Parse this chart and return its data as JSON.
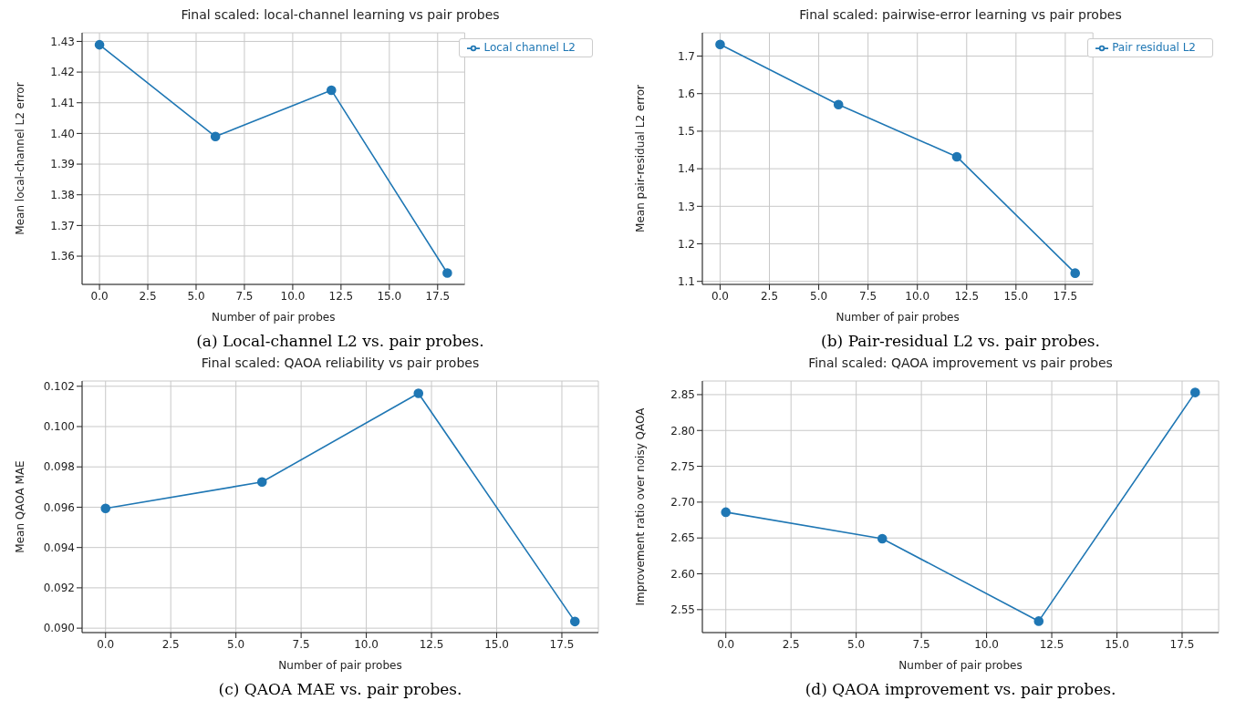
{
  "chart_data": [
    {
      "type": "line",
      "title": "Final scaled: local-channel learning vs pair probes",
      "xlabel": "Number of pair probes",
      "ylabel": "Mean local-channel L2 error",
      "annotations": [
        "(a) Local-channel L2 vs. pair probes."
      ],
      "x": [
        0,
        6,
        12,
        18
      ],
      "series": [
        {
          "name": "Local channel L2",
          "color": "#1f77b4",
          "values": [
            1.4289,
            1.399,
            1.4141,
            1.3545
          ]
        }
      ],
      "xlim": [
        -0.9,
        18.9
      ],
      "xticks": [
        {
          "value": 0,
          "label": "0.0"
        },
        {
          "value": 2.5,
          "label": "2.5"
        },
        {
          "value": 5,
          "label": "5.0"
        },
        {
          "value": 7.5,
          "label": "7.5"
        },
        {
          "value": 10,
          "label": "10.0"
        },
        {
          "value": 12.5,
          "label": "12.5"
        },
        {
          "value": 15,
          "label": "15.0"
        },
        {
          "value": 17.5,
          "label": "17.5"
        }
      ],
      "ylim": [
        1.3508,
        1.4328
      ],
      "yticks": [
        {
          "value": 1.36,
          "label": "1.36"
        },
        {
          "value": 1.37,
          "label": "1.37"
        },
        {
          "value": 1.38,
          "label": "1.38"
        },
        {
          "value": 1.39,
          "label": "1.39"
        },
        {
          "value": 1.4,
          "label": "1.40"
        },
        {
          "value": 1.41,
          "label": "1.41"
        },
        {
          "value": 1.42,
          "label": "1.42"
        },
        {
          "value": 1.43,
          "label": "1.43"
        }
      ],
      "grid": true,
      "legend": "top right",
      "marker": "circle",
      "line_style": "solid"
    },
    {
      "type": "line",
      "title": "Final scaled: pairwise-error learning vs pair probes",
      "xlabel": "Number of pair probes",
      "ylabel": "Mean pair-residual L2 error",
      "annotations": [
        "(b) Pair-residual L2 vs. pair probes."
      ],
      "x": [
        0,
        6,
        12,
        18
      ],
      "series": [
        {
          "name": "Pair residual L2",
          "color": "#1f77b4",
          "values": [
            1.731,
            1.571,
            1.432,
            1.122
          ]
        }
      ],
      "xlim": [
        -0.9,
        18.9
      ],
      "xticks": [
        {
          "value": 0,
          "label": "0.0"
        },
        {
          "value": 2.5,
          "label": "2.5"
        },
        {
          "value": 5,
          "label": "5.0"
        },
        {
          "value": 7.5,
          "label": "7.5"
        },
        {
          "value": 10,
          "label": "10.0"
        },
        {
          "value": 12.5,
          "label": "12.5"
        },
        {
          "value": 15,
          "label": "15.0"
        },
        {
          "value": 17.5,
          "label": "17.5"
        }
      ],
      "ylim": [
        1.092,
        1.762
      ],
      "yticks": [
        1.1,
        1.2,
        1.3,
        1.4,
        1.5,
        1.6,
        1.7
      ],
      "grid": true,
      "legend": "top right",
      "marker": "circle",
      "line_style": "solid"
    },
    {
      "type": "line",
      "title": "Final scaled: QAOA reliability vs pair probes",
      "xlabel": "Number of pair probes",
      "ylabel": "Mean QAOA MAE",
      "annotations": [
        "(c) QAOA MAE vs. pair probes."
      ],
      "x": [
        0,
        6,
        12,
        18
      ],
      "series": [
        {
          "color": "#1f77b4",
          "values": [
            0.09594,
            0.09725,
            0.10165,
            0.09033
          ]
        }
      ],
      "xlim": [
        -0.9,
        18.9
      ],
      "xticks": [
        {
          "value": 0,
          "label": "0.0"
        },
        {
          "value": 2.5,
          "label": "2.5"
        },
        {
          "value": 5,
          "label": "5.0"
        },
        {
          "value": 7.5,
          "label": "7.5"
        },
        {
          "value": 10,
          "label": "10.0"
        },
        {
          "value": 12.5,
          "label": "12.5"
        },
        {
          "value": 15,
          "label": "15.0"
        },
        {
          "value": 17.5,
          "label": "17.5"
        }
      ],
      "ylim": [
        0.08978,
        0.10226
      ],
      "yticks": [
        {
          "value": 0.09,
          "label": "0.090"
        },
        0.092,
        0.094,
        0.096,
        0.098,
        {
          "value": 0.1,
          "label": "0.100"
        },
        0.102
      ],
      "grid": true,
      "marker": "circle",
      "line_style": "solid"
    },
    {
      "type": "line",
      "title": "Final scaled: QAOA improvement vs pair probes",
      "xlabel": "Number of pair probes",
      "ylabel": "Improvement ratio over noisy QAOA",
      "annotations": [
        "(d) QAOA improvement vs. pair probes."
      ],
      "x": [
        0,
        6,
        12,
        18
      ],
      "series": [
        {
          "color": "#1f77b4",
          "values": [
            2.686,
            2.649,
            2.534,
            2.853
          ]
        }
      ],
      "xlim": [
        -0.9,
        18.9
      ],
      "xticks": [
        {
          "value": 0,
          "label": "0.0"
        },
        {
          "value": 2.5,
          "label": "2.5"
        },
        {
          "value": 5,
          "label": "5.0"
        },
        {
          "value": 7.5,
          "label": "7.5"
        },
        {
          "value": 10,
          "label": "10.0"
        },
        {
          "value": 12.5,
          "label": "12.5"
        },
        {
          "value": 15,
          "label": "15.0"
        },
        {
          "value": 17.5,
          "label": "17.5"
        }
      ],
      "ylim": [
        2.518,
        2.869
      ],
      "yticks": [
        2.55,
        {
          "value": 2.6,
          "label": "2.60"
        },
        2.65,
        {
          "value": 2.7,
          "label": "2.70"
        },
        2.75,
        {
          "value": 2.8,
          "label": "2.80"
        },
        2.85
      ],
      "grid": true,
      "marker": "circle",
      "line_style": "solid"
    }
  ]
}
